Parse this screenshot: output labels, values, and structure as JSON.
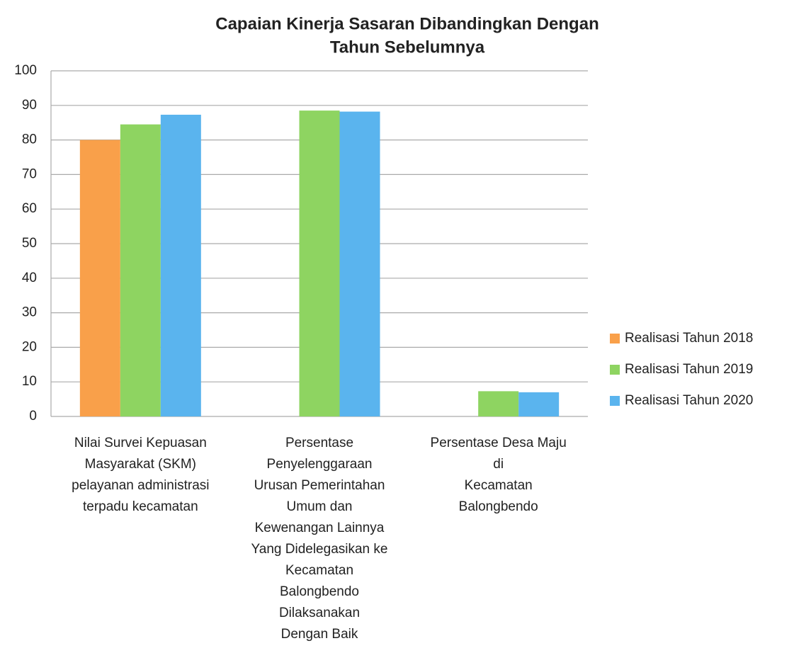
{
  "chart_data": {
    "type": "bar",
    "title": [
      "Capaian Kinerja Sasaran Dibandingkan Dengan",
      "Tahun Sebelumnya"
    ],
    "categories": [
      [
        "Nilai Survei Kepuasan",
        "Masyarakat (SKM)",
        "pelayanan administrasi",
        "terpadu kecamatan"
      ],
      [
        "Persentase",
        "Penyelenggaraan",
        "Urusan Pemerintahan",
        "Umum dan",
        "Kewenangan Lainnya",
        "Yang Didelegasikan ke",
        "Kecamatan",
        "Balongbendo",
        "Dilaksanakan",
        "Dengan Baik"
      ],
      [
        "Persentase Desa Maju",
        "di",
        "Kecamatan",
        "Balongbendo"
      ]
    ],
    "series": [
      {
        "name": "Realisasi Tahun 2018",
        "color": "#f9a04a",
        "values": [
          80,
          null,
          null
        ]
      },
      {
        "name": "Realisasi Tahun 2019",
        "color": "#8ed461",
        "values": [
          84.5,
          88.5,
          7.3
        ]
      },
      {
        "name": "Realisasi Tahun 2020",
        "color": "#5ab4ee",
        "values": [
          87.3,
          88.2,
          7
        ]
      }
    ],
    "ylim": [
      0,
      100
    ],
    "yticks": [
      0,
      10,
      20,
      30,
      40,
      50,
      60,
      70,
      80,
      90,
      100
    ],
    "grid": true,
    "legend": "right"
  }
}
